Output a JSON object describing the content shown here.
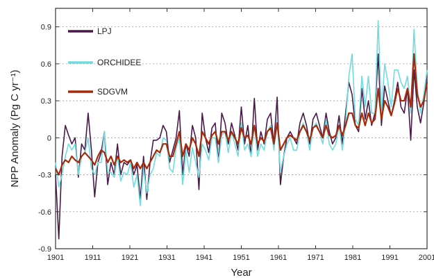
{
  "chart_data": {
    "type": "line",
    "xlabel": "Year",
    "ylabel": "NPP Anomaly (Pg C yr⁻¹)",
    "xlim": [
      1901,
      2001
    ],
    "ylim": [
      -0.9,
      1.05
    ],
    "xticks": [
      1901,
      1911,
      1921,
      1931,
      1941,
      1951,
      1961,
      1971,
      1981,
      1991,
      2001
    ],
    "yticks": [
      -0.9,
      -0.6,
      -0.3,
      0,
      0.3,
      0.6,
      0.9
    ],
    "ytick_labels": [
      "-0.9",
      "-0.6",
      "-0.3",
      "0",
      "0.3",
      "0.6",
      "0.9"
    ],
    "grid": "horizontal dotted",
    "legend_position": "top-left",
    "series": [
      {
        "name": "LPJ",
        "color": "#4a1848",
        "values": [
          -0.3,
          -0.82,
          -0.15,
          0.1,
          0.02,
          -0.05,
          0.0,
          -0.32,
          -0.05,
          -0.1,
          0.2,
          -0.1,
          -0.48,
          -0.2,
          -0.12,
          0.05,
          -0.38,
          -0.2,
          -0.3,
          -0.05,
          -0.3,
          -0.2,
          -0.22,
          -0.18,
          -0.3,
          -0.22,
          -0.5,
          -0.15,
          -0.5,
          -0.2,
          -0.02,
          -0.02,
          0.0,
          0.1,
          0.05,
          -0.2,
          -0.1,
          0.0,
          0.22,
          -0.3,
          -0.05,
          -0.15,
          0.1,
          0.0,
          -0.42,
          0.2,
          0.0,
          -0.12,
          0.08,
          0.12,
          -0.2,
          0.2,
          0.12,
          -0.05,
          0.12,
          0.02,
          -0.1,
          0.25,
          -0.05,
          0.1,
          -0.15,
          0.32,
          -0.1,
          0.05,
          -0.05,
          0.15,
          0.2,
          -0.05,
          0.33,
          -0.38,
          -0.15,
          0.0,
          0.05,
          0.0,
          -0.05,
          0.12,
          0.2,
          0.1,
          -0.05,
          0.15,
          0.2,
          0.1,
          0.0,
          0.2,
          0.05,
          -0.05,
          0.0,
          0.18,
          -0.05,
          0.2,
          0.45,
          0.35,
          0.1,
          0.05,
          0.4,
          0.15,
          0.3,
          0.1,
          0.2,
          0.68,
          0.1,
          0.42,
          0.3,
          0.18,
          0.3,
          0.45,
          0.25,
          0.2,
          0.4,
          -0.02,
          0.55,
          0.25,
          0.12,
          0.28,
          0.5
        ]
      },
      {
        "name": "ORCHIDEE",
        "color": "#6fdce0",
        "values": [
          -0.2,
          -0.4,
          -0.3,
          -0.15,
          -0.05,
          -0.1,
          -0.05,
          -0.3,
          -0.15,
          -0.12,
          0.0,
          -0.25,
          -0.3,
          -0.2,
          -0.2,
          0.05,
          -0.28,
          -0.28,
          -0.32,
          -0.15,
          -0.35,
          -0.28,
          -0.3,
          -0.2,
          -0.4,
          -0.3,
          -0.55,
          -0.25,
          -0.45,
          -0.3,
          -0.25,
          -0.12,
          -0.15,
          0.0,
          -0.02,
          -0.25,
          -0.28,
          -0.08,
          0.0,
          -0.38,
          -0.1,
          -0.28,
          -0.08,
          -0.2,
          -0.32,
          -0.05,
          -0.1,
          -0.18,
          0.0,
          0.0,
          -0.2,
          0.02,
          0.05,
          -0.12,
          0.05,
          -0.05,
          -0.15,
          0.12,
          -0.1,
          -0.05,
          -0.15,
          0.1,
          -0.15,
          -0.05,
          -0.1,
          0.05,
          0.1,
          -0.1,
          0.15,
          -0.28,
          -0.15,
          -0.05,
          0.0,
          -0.1,
          -0.1,
          0.05,
          0.12,
          0.05,
          -0.1,
          0.08,
          0.12,
          0.05,
          -0.05,
          0.15,
          -0.05,
          -0.1,
          -0.05,
          0.1,
          -0.1,
          0.12,
          0.5,
          0.68,
          0.15,
          0.1,
          0.5,
          0.25,
          0.5,
          0.2,
          0.2,
          0.95,
          0.2,
          0.6,
          0.45,
          0.25,
          0.55,
          0.55,
          0.45,
          0.4,
          0.5,
          0.2,
          0.88,
          0.4,
          0.2,
          0.35,
          0.55
        ]
      },
      {
        "name": "SDGVM",
        "color": "#a52a0a",
        "values": [
          -0.25,
          -0.3,
          -0.22,
          -0.18,
          -0.2,
          -0.15,
          -0.18,
          -0.2,
          -0.15,
          -0.12,
          -0.15,
          -0.18,
          -0.22,
          -0.15,
          -0.1,
          -0.12,
          -0.2,
          -0.15,
          -0.22,
          -0.15,
          -0.2,
          -0.18,
          -0.2,
          -0.18,
          -0.25,
          -0.2,
          -0.25,
          -0.2,
          -0.25,
          -0.2,
          -0.15,
          -0.1,
          -0.12,
          -0.05,
          -0.05,
          -0.15,
          -0.15,
          -0.05,
          0.05,
          -0.15,
          -0.05,
          -0.1,
          0.0,
          -0.05,
          -0.15,
          0.05,
          0.0,
          -0.05,
          0.02,
          0.05,
          -0.05,
          0.05,
          0.05,
          -0.02,
          0.05,
          0.0,
          -0.05,
          0.08,
          0.0,
          0.02,
          -0.05,
          0.1,
          -0.05,
          0.0,
          -0.03,
          0.05,
          0.08,
          -0.05,
          0.12,
          -0.1,
          -0.05,
          0.0,
          0.02,
          0.0,
          -0.02,
          0.05,
          0.1,
          0.05,
          -0.02,
          0.08,
          0.1,
          0.05,
          0.0,
          0.1,
          0.02,
          0.0,
          0.02,
          0.1,
          0.02,
          0.1,
          0.2,
          0.2,
          0.1,
          0.08,
          0.2,
          0.1,
          0.2,
          0.12,
          0.15,
          0.4,
          0.15,
          0.3,
          0.25,
          0.18,
          0.28,
          0.4,
          0.3,
          0.3,
          0.4,
          0.25,
          0.68,
          0.35,
          0.25,
          0.3,
          0.45
        ]
      }
    ]
  }
}
